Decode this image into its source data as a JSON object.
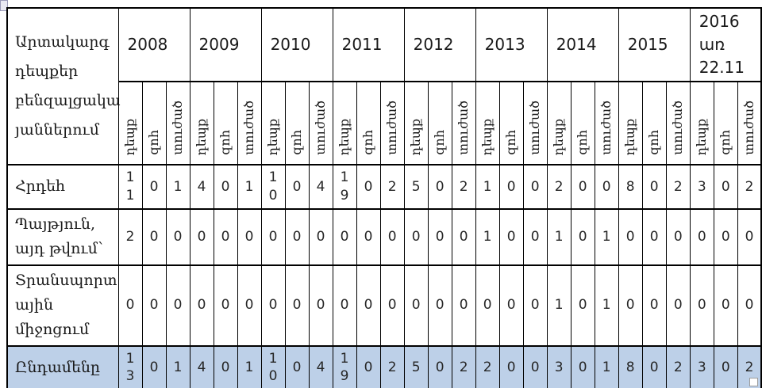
{
  "header": {
    "row_label": "Արտակարգ\nդեպքեր\nբենզալցակա\nյաններում",
    "years": [
      "2008",
      "2009",
      "2010",
      "2011",
      "2012",
      "2013",
      "2014",
      "2015",
      "2016\nառ\n22.11"
    ],
    "metrics": [
      "դեպք",
      "զոհ",
      "տուժած"
    ]
  },
  "rows": [
    {
      "label": "Հրդեհ",
      "values": [
        11,
        0,
        1,
        4,
        0,
        1,
        10,
        0,
        4,
        19,
        0,
        2,
        5,
        0,
        2,
        1,
        0,
        0,
        2,
        0,
        0,
        8,
        0,
        2,
        3,
        0,
        2
      ],
      "highlight": false
    },
    {
      "label": "Պայթյուն,\nայդ թվում՝",
      "values": [
        2,
        0,
        0,
        0,
        0,
        0,
        0,
        0,
        0,
        0,
        0,
        0,
        0,
        0,
        0,
        1,
        0,
        0,
        1,
        0,
        1,
        0,
        0,
        0,
        0,
        0,
        0
      ],
      "highlight": false
    },
    {
      "label": "Տրանսպորտ\nային\nմիջոցում",
      "values": [
        0,
        0,
        0,
        0,
        0,
        0,
        0,
        0,
        0,
        0,
        0,
        0,
        0,
        0,
        0,
        0,
        0,
        0,
        1,
        0,
        1,
        0,
        0,
        0,
        0,
        0,
        0
      ],
      "highlight": false
    },
    {
      "label": "Ընդամենը",
      "values": [
        13,
        0,
        1,
        4,
        0,
        1,
        10,
        0,
        4,
        19,
        0,
        2,
        5,
        0,
        2,
        2,
        0,
        0,
        3,
        0,
        1,
        8,
        0,
        2,
        3,
        0,
        2
      ],
      "highlight": true
    }
  ],
  "colors": {
    "total_row_bg": "#bdd0e8",
    "border": "#000000",
    "text": "#1a1a1a"
  }
}
